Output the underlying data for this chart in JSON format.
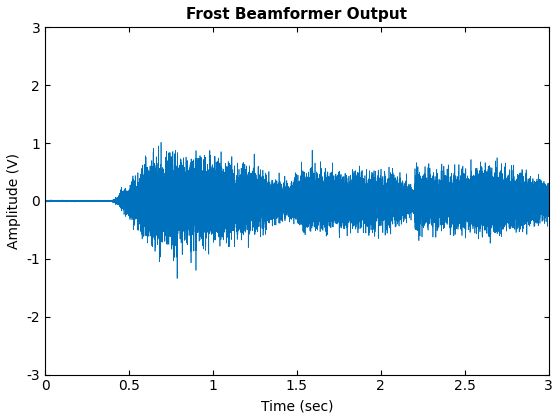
{
  "title": "Frost Beamformer Output",
  "xlabel": "Time (sec)",
  "ylabel": "Amplitude (V)",
  "xlim": [
    0,
    3
  ],
  "ylim": [
    -3,
    3
  ],
  "xticks": [
    0,
    0.5,
    1,
    1.5,
    2,
    2.5,
    3
  ],
  "yticks": [
    -3,
    -2,
    -1,
    0,
    1,
    2,
    3
  ],
  "line_color": "#0072BD",
  "sample_rate": 8000,
  "duration": 3.0,
  "background_color": "#FFFFFF",
  "title_fontsize": 11,
  "label_fontsize": 10,
  "tick_fontsize": 10,
  "seed": 12345
}
